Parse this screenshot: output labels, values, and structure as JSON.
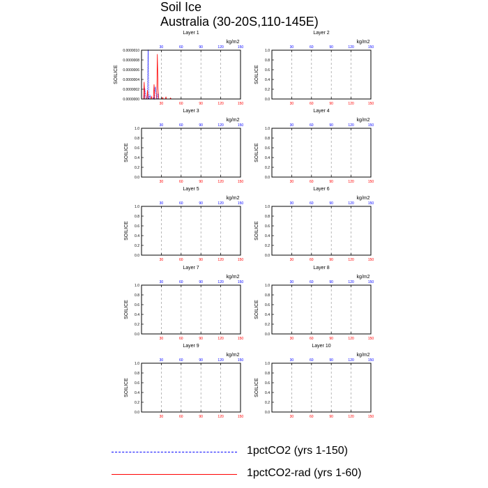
{
  "title": "Soil Ice",
  "subtitle": "Australia (30-20S,110-145E)",
  "legend": [
    {
      "label": "1pctCO2 (yrs 1-150)",
      "color": "#0000ff",
      "style": "dashed"
    },
    {
      "label": "1pctCO2-rad (yrs 1-60)",
      "color": "#ff0000",
      "style": "solid"
    }
  ],
  "chart_data": [
    {
      "type": "line",
      "panel_title": "Layer 1",
      "ylabel": "SOILICE",
      "units": "kg/m2",
      "ylim": [
        0,
        1e-06
      ],
      "yticks": [
        "0.0000000",
        "0.0000002",
        "0.0000004",
        "0.0000006",
        "0.0000008",
        "0.0000010"
      ],
      "top_xticks": [
        "30",
        "60",
        "90",
        "120",
        "150"
      ],
      "bottom_xticks": [
        "30",
        "60",
        "90",
        "120",
        "150"
      ],
      "series": [
        {
          "name": "1pctCO2 (yrs 1-150)",
          "x": [
            1,
            2,
            3,
            4,
            5,
            6,
            7,
            8,
            9,
            10,
            11,
            12,
            13,
            14,
            15,
            16,
            17,
            18,
            19,
            20,
            21,
            22,
            23,
            24,
            25,
            26,
            27,
            28
          ],
          "values": [
            0,
            0,
            0,
            0,
            2.2e-07,
            8e-08,
            0,
            0,
            0,
            1.01e-06,
            0,
            3e-08,
            8e-08,
            0,
            0,
            0,
            0,
            3e-08,
            0,
            1.5e-07,
            2.5e-07,
            1e-07,
            0,
            0,
            1.2e-07,
            0,
            0,
            0
          ]
        },
        {
          "name": "1pctCO2-rad (yrs 1-60)",
          "x": [
            1,
            2,
            3,
            4,
            5,
            6,
            7,
            8,
            9,
            10,
            11,
            12,
            13,
            14,
            15,
            16,
            17,
            18,
            19,
            20,
            21,
            22,
            23,
            24,
            25,
            26,
            27,
            28,
            29,
            30,
            31,
            32,
            33,
            34,
            35,
            36,
            37,
            38,
            39,
            40,
            41,
            42,
            43,
            44,
            45
          ],
          "values": [
            0,
            0,
            0,
            3.5e-07,
            0,
            0,
            0,
            0,
            1.8e-07,
            0,
            0,
            0,
            0,
            0,
            5e-08,
            0,
            0,
            0,
            3e-07,
            0,
            0,
            0,
            0,
            9.2e-07,
            2.2e-07,
            0,
            0,
            0,
            0,
            0,
            0,
            3e-08,
            0,
            0,
            0,
            0,
            4e-08,
            0,
            0,
            0,
            0,
            0,
            0,
            2e-08,
            0
          ]
        }
      ]
    },
    {
      "type": "line",
      "panel_title": "Layer 2",
      "ylabel": "SOILICE",
      "units": "kg/m2",
      "ylim": [
        0,
        1
      ],
      "yticks": [
        "0.0",
        "0.2",
        "0.4",
        "0.6",
        "0.8",
        "1.0"
      ],
      "top_xticks": [
        "30",
        "60",
        "90",
        "120",
        "150"
      ],
      "bottom_xticks": [
        "30",
        "60",
        "90",
        "120",
        "150"
      ],
      "series": []
    },
    {
      "type": "line",
      "panel_title": "Layer 3",
      "ylabel": "SOILICE",
      "units": "kg/m2",
      "ylim": [
        0,
        1
      ],
      "yticks": [
        "0.0",
        "0.2",
        "0.4",
        "0.6",
        "0.8",
        "1.0"
      ],
      "top_xticks": [
        "30",
        "60",
        "90",
        "120",
        "150"
      ],
      "bottom_xticks": [
        "30",
        "60",
        "90",
        "120",
        "150"
      ],
      "series": []
    },
    {
      "type": "line",
      "panel_title": "Layer 4",
      "ylabel": "SOILICE",
      "units": "kg/m2",
      "ylim": [
        0,
        1
      ],
      "yticks": [
        "0.0",
        "0.2",
        "0.4",
        "0.6",
        "0.8",
        "1.0"
      ],
      "top_xticks": [
        "30",
        "60",
        "90",
        "120",
        "150"
      ],
      "bottom_xticks": [
        "30",
        "60",
        "90",
        "120",
        "150"
      ],
      "series": []
    },
    {
      "type": "line",
      "panel_title": "Layer 5",
      "ylabel": "SOILICE",
      "units": "kg/m2",
      "ylim": [
        0,
        1
      ],
      "yticks": [
        "0.0",
        "0.2",
        "0.4",
        "0.6",
        "0.8",
        "1.0"
      ],
      "top_xticks": [
        "30",
        "60",
        "90",
        "120",
        "150"
      ],
      "bottom_xticks": [
        "30",
        "60",
        "90",
        "120",
        "150"
      ],
      "series": []
    },
    {
      "type": "line",
      "panel_title": "Layer 6",
      "ylabel": "SOILICE",
      "units": "kg/m2",
      "ylim": [
        0,
        1
      ],
      "yticks": [
        "0.0",
        "0.2",
        "0.4",
        "0.6",
        "0.8",
        "1.0"
      ],
      "top_xticks": [
        "30",
        "60",
        "90",
        "120",
        "150"
      ],
      "bottom_xticks": [
        "30",
        "60",
        "90",
        "120",
        "150"
      ],
      "series": []
    },
    {
      "type": "line",
      "panel_title": "Layer 7",
      "ylabel": "SOILICE",
      "units": "kg/m2",
      "ylim": [
        0,
        1
      ],
      "yticks": [
        "0.0",
        "0.2",
        "0.4",
        "0.6",
        "0.8",
        "1.0"
      ],
      "top_xticks": [
        "30",
        "60",
        "90",
        "120",
        "150"
      ],
      "bottom_xticks": [
        "30",
        "60",
        "90",
        "120",
        "150"
      ],
      "series": []
    },
    {
      "type": "line",
      "panel_title": "Layer 8",
      "ylabel": "SOILICE",
      "units": "kg/m2",
      "ylim": [
        0,
        1
      ],
      "yticks": [
        "0.0",
        "0.2",
        "0.4",
        "0.6",
        "0.8",
        "1.0"
      ],
      "top_xticks": [
        "30",
        "60",
        "90",
        "120",
        "150"
      ],
      "bottom_xticks": [
        "30",
        "60",
        "90",
        "120",
        "150"
      ],
      "series": []
    },
    {
      "type": "line",
      "panel_title": "Layer 9",
      "ylabel": "SOILICE",
      "units": "kg/m2",
      "ylim": [
        0,
        1
      ],
      "yticks": [
        "0.0",
        "0.2",
        "0.4",
        "0.6",
        "0.8",
        "1.0"
      ],
      "top_xticks": [
        "30",
        "60",
        "90",
        "120",
        "150"
      ],
      "bottom_xticks": [
        "30",
        "60",
        "90",
        "120",
        "150"
      ],
      "series": []
    },
    {
      "type": "line",
      "panel_title": "Layer 10",
      "ylabel": "SOILICE",
      "units": "kg/m2",
      "ylim": [
        0,
        1
      ],
      "yticks": [
        "0.0",
        "0.2",
        "0.4",
        "0.6",
        "0.8",
        "1.0"
      ],
      "top_xticks": [
        "30",
        "60",
        "90",
        "120",
        "150"
      ],
      "bottom_xticks": [
        "30",
        "60",
        "90",
        "120",
        "150"
      ],
      "series": []
    }
  ]
}
